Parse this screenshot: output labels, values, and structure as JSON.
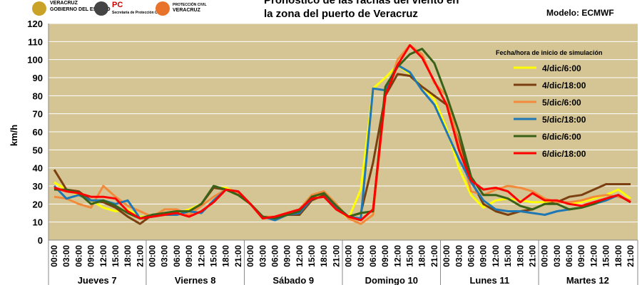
{
  "chart_data": {
    "type": "line",
    "title": [
      "Pronóstico de las rachas del viento en",
      "la zona del puerto de Veracruz"
    ],
    "annotation": "Modelo: ECMWF",
    "y_label": "km/h",
    "legend_title": "Fecha/hora de inicio de simulación",
    "logos": [
      "VERACRUZ",
      "GOBIERNO DEL ESTADO",
      "PC",
      "Secretaría de Protección Civil",
      "PROTECCIÓN CIVIL",
      "VERACRUZ"
    ],
    "day_labels": [
      "Jueves 7",
      "Viernes 8",
      "Sábado 9",
      "Domingo 10",
      "Lunes 11",
      "Martes 12"
    ],
    "categories": [
      "00:00",
      "03:00",
      "06:00",
      "09:00",
      "12:00",
      "15:00",
      "18:00",
      "21:00",
      "00:00",
      "03:00",
      "06:00",
      "09:00",
      "12:00",
      "15:00",
      "18:00",
      "21:00",
      "00:00",
      "03:00",
      "06:00",
      "09:00",
      "12:00",
      "15:00",
      "18:00",
      "21:00",
      "00:00",
      "03:00",
      "06:00",
      "09:00",
      "12:00",
      "15:00",
      "18:00",
      "21:00",
      "00:00",
      "03:00",
      "06:00",
      "09:00",
      "12:00",
      "15:00",
      "18:00",
      "21:00",
      "00:00",
      "03:00",
      "06:00",
      "09:00",
      "12:00",
      "15:00",
      "18:00",
      "21:00"
    ],
    "ylim": [
      0,
      120
    ],
    "yticks": [
      0,
      10,
      20,
      30,
      40,
      50,
      60,
      70,
      80,
      90,
      100,
      110,
      120
    ],
    "grid": true,
    "legend": "upper right",
    "series": [
      {
        "name": "4/dic/6:00",
        "color": "#ffff00",
        "values": [
          32,
          28,
          25,
          22,
          18,
          16,
          17,
          13,
          13,
          14,
          15,
          17,
          20,
          29,
          29,
          26,
          20,
          13,
          12,
          14,
          16,
          24,
          25,
          18,
          12,
          28,
          84,
          90,
          97,
          92,
          85,
          78,
          62,
          40,
          25,
          18,
          22,
          23,
          22,
          21,
          21,
          22,
          20,
          21,
          23,
          25,
          28,
          23
        ]
      },
      {
        "name": "4/dic/18:00",
        "color": "#7b3f10",
        "values": [
          39,
          28,
          27,
          22,
          21,
          18,
          13,
          9,
          14,
          15,
          16,
          16,
          20,
          29,
          28,
          25,
          20,
          13,
          12,
          14,
          14,
          22,
          25,
          18,
          13,
          15,
          43,
          80,
          92,
          91,
          85,
          80,
          75,
          55,
          33,
          20,
          16,
          14,
          16,
          17,
          20,
          21,
          24,
          25,
          28,
          31,
          31,
          31
        ]
      },
      {
        "name": "5/dic/6:00",
        "color": "#f28a3c",
        "values": [
          24,
          23,
          20,
          18,
          30,
          24,
          19,
          16,
          13,
          17,
          17,
          14,
          19,
          24,
          28,
          26,
          20,
          13,
          13,
          15,
          17,
          25,
          27,
          20,
          12,
          9,
          14,
          80,
          100,
          108,
          103,
          87,
          80,
          53,
          27,
          25,
          28,
          30,
          29,
          27,
          23,
          21,
          21,
          22,
          24,
          25,
          24,
          22
        ]
      },
      {
        "name": "5/dic/18:00",
        "color": "#1f77b4",
        "values": [
          30,
          23,
          25,
          22,
          22,
          20,
          22,
          12,
          13,
          14,
          14,
          16,
          15,
          22,
          28,
          27,
          20,
          13,
          11,
          14,
          15,
          23,
          24,
          18,
          13,
          12,
          84,
          83,
          97,
          93,
          83,
          75,
          60,
          45,
          32,
          22,
          17,
          16,
          16,
          15,
          14,
          16,
          17,
          18,
          20,
          22,
          25,
          21
        ]
      },
      {
        "name": "6/dic/6:00",
        "color": "#3a6118",
        "values": [
          28,
          28,
          26,
          20,
          22,
          19,
          15,
          12,
          14,
          15,
          16,
          16,
          20,
          30,
          28,
          25,
          20,
          13,
          12,
          14,
          16,
          24,
          26,
          19,
          13,
          15,
          16,
          85,
          96,
          103,
          106,
          98,
          80,
          60,
          35,
          25,
          25,
          23,
          19,
          17,
          20,
          20,
          17,
          18,
          20,
          23,
          25,
          21
        ]
      },
      {
        "name": "6/dic/18:00",
        "color": "#ff0000",
        "values": [
          29,
          27,
          26,
          24,
          24,
          23,
          16,
          12,
          13,
          14,
          15,
          13,
          16,
          21,
          28,
          27,
          20,
          12,
          13,
          15,
          17,
          23,
          24,
          17,
          13,
          11,
          17,
          80,
          97,
          108,
          101,
          88,
          75,
          50,
          33,
          28,
          29,
          27,
          21,
          26,
          22,
          22,
          20,
          19,
          21,
          23,
          25,
          21
        ]
      }
    ]
  }
}
